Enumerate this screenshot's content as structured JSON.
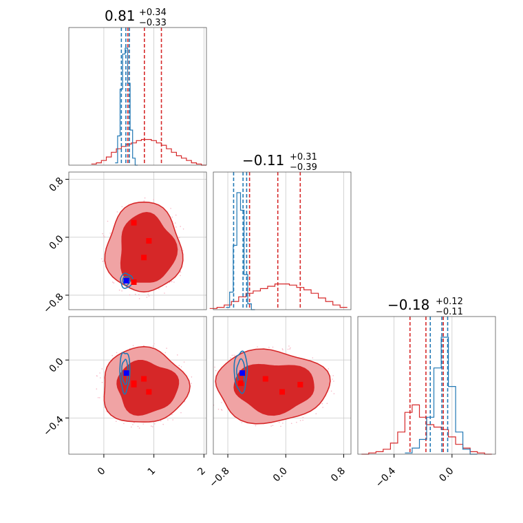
{
  "colors": {
    "red": "#d62728",
    "red_fill_outer": "#f0a3a4",
    "red_fill_inner": "#d62728",
    "blue": "#1f77b4",
    "marker_red": "#ff0000",
    "marker_blue": "#0000ff"
  },
  "titles": {
    "p0": {
      "median": "0.81",
      "plus": "+0.34",
      "minus": "−0.33"
    },
    "p1": {
      "median": "−0.11",
      "plus": "+0.31",
      "minus": "−0.39"
    },
    "p2": {
      "median": "−0.18",
      "plus": "+0.12",
      "minus": "−0.11"
    }
  },
  "chart_data": {
    "type": "corner",
    "grid": true,
    "parameters": [
      {
        "range": [
          -0.7,
          2.05
        ],
        "ticks": [
          0,
          1,
          2
        ],
        "tick_labels": [
          "0",
          "1",
          "2"
        ]
      },
      {
        "range": [
          -1.0,
          0.9
        ],
        "ticks": [
          -0.8,
          0.0,
          0.8
        ],
        "tick_labels": [
          "−0.8",
          "0.0",
          "0.8"
        ]
      },
      {
        "range": [
          -0.65,
          0.3
        ],
        "ticks": [
          -0.4,
          0.0
        ],
        "tick_labels": [
          "−0.4",
          "0.0"
        ]
      }
    ],
    "series": [
      {
        "color": "#d62728",
        "quantiles": [
          [
            0.48,
            0.81,
            1.15
          ],
          [
            -0.5,
            -0.11,
            0.2
          ],
          [
            -0.29,
            -0.18,
            -0.06
          ]
        ],
        "hist": [
          {
            "x": [
              -0.2,
              -0.1,
              0.0,
              0.1,
              0.2,
              0.3,
              0.4,
              0.5,
              0.6,
              0.7,
              0.8,
              0.9,
              1.0,
              1.1,
              1.2,
              1.3,
              1.4,
              1.5,
              1.6,
              1.7,
              1.8,
              1.9,
              2.0
            ],
            "y": [
              0.01,
              0.02,
              0.04,
              0.07,
              0.11,
              0.14,
              0.16,
              0.18,
              0.19,
              0.21,
              0.22,
              0.22,
              0.21,
              0.19,
              0.17,
              0.14,
              0.11,
              0.08,
              0.06,
              0.04,
              0.02,
              0.01,
              0.0
            ]
          },
          {
            "x": [
              -1.0,
              -0.9,
              -0.8,
              -0.7,
              -0.6,
              -0.5,
              -0.4,
              -0.3,
              -0.2,
              -0.1,
              0.0,
              0.1,
              0.2,
              0.3,
              0.4,
              0.5,
              0.6,
              0.7,
              0.8
            ],
            "y": [
              0.01,
              0.02,
              0.04,
              0.07,
              0.11,
              0.14,
              0.16,
              0.18,
              0.2,
              0.22,
              0.22,
              0.21,
              0.19,
              0.17,
              0.14,
              0.1,
              0.07,
              0.04,
              0.02
            ]
          },
          {
            "x": [
              -0.6,
              -0.55,
              -0.5,
              -0.45,
              -0.4,
              -0.35,
              -0.3,
              -0.25,
              -0.2,
              -0.15,
              -0.1,
              -0.05,
              0.0,
              0.05,
              0.1,
              0.15,
              0.2,
              0.25
            ],
            "y": [
              0.0,
              0.01,
              0.02,
              0.04,
              0.09,
              0.18,
              0.34,
              0.4,
              0.3,
              0.24,
              0.22,
              0.2,
              0.14,
              0.08,
              0.05,
              0.02,
              0.01,
              0.0
            ]
          }
        ],
        "contours_2d": {
          "1_0": {
            "center": [
              0.8,
              -0.15
            ],
            "inner": [
              0.55,
              0.48
            ],
            "outer": [
              0.75,
              0.62
            ]
          },
          "2_0": {
            "center": [
              0.8,
              -0.18
            ],
            "inner": [
              0.6,
              0.18
            ],
            "outer": [
              0.85,
              0.26
            ]
          },
          "2_1": {
            "center": [
              -0.2,
              -0.18
            ],
            "inner": [
              0.55,
              0.17
            ],
            "outer": [
              0.78,
              0.25
            ]
          }
        }
      },
      {
        "color": "#1f77b4",
        "quantiles": [
          [
            0.35,
            0.44,
            0.51
          ],
          [
            -0.72,
            -0.59,
            -0.54
          ],
          [
            -0.15,
            -0.07,
            -0.03
          ]
        ],
        "hist": [
          {
            "x": [
              0.25,
              0.3,
              0.35,
              0.4,
              0.45,
              0.5,
              0.55,
              0.6,
              0.65
            ],
            "y": [
              0.02,
              0.25,
              0.65,
              0.95,
              1.0,
              0.7,
              0.3,
              0.06,
              0.0
            ]
          },
          {
            "x": [
              -0.8,
              -0.75,
              -0.7,
              -0.65,
              -0.6,
              -0.55,
              -0.5,
              -0.45
            ],
            "y": [
              0.02,
              0.15,
              0.55,
              1.0,
              0.85,
              0.3,
              0.05,
              0.0
            ]
          },
          {
            "x": [
              -0.3,
              -0.25,
              -0.2,
              -0.15,
              -0.1,
              -0.05,
              0.0,
              0.05,
              0.1,
              0.15
            ],
            "y": [
              0.01,
              0.05,
              0.12,
              0.3,
              0.7,
              0.95,
              0.55,
              0.18,
              0.04,
              0.0
            ]
          }
        ],
        "contours_2d": {
          "1_0": {
            "center": [
              0.45,
              -0.6
            ],
            "rx": 0.12,
            "ry": 0.1
          },
          "2_0": {
            "center": [
              0.42,
              -0.08
            ],
            "rx": 0.1,
            "ry": 0.14
          },
          "2_1": {
            "center": [
              -0.62,
              -0.08
            ],
            "rx": 0.09,
            "ry": 0.14
          }
        }
      }
    ],
    "markers": {
      "red": [
        [
          0.6,
          0.2,
          -0.17
        ],
        [
          0.9,
          -0.05,
          -0.22
        ],
        [
          0.8,
          -0.28,
          -0.13
        ],
        [
          0.6,
          -0.62,
          -0.16
        ]
      ],
      "blue": [
        [
          0.45,
          -0.6,
          -0.09
        ]
      ]
    }
  }
}
